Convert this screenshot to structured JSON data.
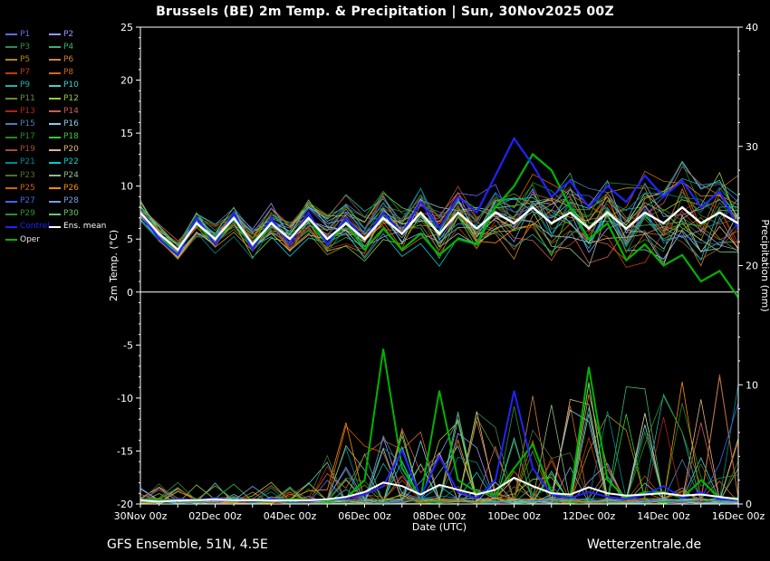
{
  "title": "Brussels  (BE)  2m Temp. & Precipitation | Sun, 30Nov2025 00Z",
  "footer": {
    "left": "GFS Ensemble, 51N, 4.5E",
    "right": "Wetterzentrale.de"
  },
  "legend": {
    "members": [
      {
        "label": "P1",
        "color": "#6666ee"
      },
      {
        "label": "P2",
        "color": "#9999ff"
      },
      {
        "label": "P3",
        "color": "#2e8b57"
      },
      {
        "label": "P4",
        "color": "#3cb371"
      },
      {
        "label": "P5",
        "color": "#b8860b"
      },
      {
        "label": "P6",
        "color": "#cd853f"
      },
      {
        "label": "P7",
        "color": "#c04000"
      },
      {
        "label": "P8",
        "color": "#d2691e"
      },
      {
        "label": "P9",
        "color": "#20b2aa"
      },
      {
        "label": "P10",
        "color": "#48d1cc"
      },
      {
        "label": "P11",
        "color": "#6b8e23"
      },
      {
        "label": "P12",
        "color": "#9acd32"
      },
      {
        "label": "P13",
        "color": "#b22222"
      },
      {
        "label": "P14",
        "color": "#cd5c5c"
      },
      {
        "label": "P15",
        "color": "#4682b4"
      },
      {
        "label": "P16",
        "color": "#87ceeb"
      },
      {
        "label": "P17",
        "color": "#228b22"
      },
      {
        "label": "P18",
        "color": "#32cd32"
      },
      {
        "label": "P19",
        "color": "#a0522d"
      },
      {
        "label": "P20",
        "color": "#deb887"
      },
      {
        "label": "P21",
        "color": "#008b8b"
      },
      {
        "label": "P22",
        "color": "#00ced1"
      },
      {
        "label": "P23",
        "color": "#556b2f"
      },
      {
        "label": "P24",
        "color": "#8fbc8f"
      },
      {
        "label": "P25",
        "color": "#cc6600"
      },
      {
        "label": "P26",
        "color": "#ff8c00"
      },
      {
        "label": "P27",
        "color": "#4169e1"
      },
      {
        "label": "P28",
        "color": "#7b9fe0"
      },
      {
        "label": "P29",
        "color": "#2f8f2f"
      },
      {
        "label": "P30",
        "color": "#66cc66"
      }
    ],
    "control": {
      "label": "Control",
      "color": "#2222ff"
    },
    "ens_mean": {
      "label": "Ens. mean",
      "color": "#ffffff"
    },
    "oper": {
      "label": "Oper",
      "color": "#00b400",
      "label_color": "#e8e8e8"
    }
  },
  "chart_data": {
    "type": "line",
    "title": "Brussels  (BE)  2m Temp. & Precipitation | Sun, 30Nov2025 00Z",
    "xlabel": "Date (UTC)",
    "ylabel_left": "2m Temp. (°C)",
    "ylabel_right": "Precipitation (mm)",
    "ylim_left": [
      -20,
      25
    ],
    "ylim_right": [
      0,
      40
    ],
    "x_hours_step": 12,
    "x_hours_max": 384,
    "x_tick_labels": [
      "30Nov 00z",
      "02Dec 00z",
      "04Dec 00z",
      "06Dec 00z",
      "08Dec 00z",
      "10Dec 00z",
      "12Dec 00z",
      "14Dec 00z",
      "16Dec 00z"
    ],
    "y_ticks_left": [
      25,
      20,
      15,
      10,
      5,
      0,
      -5,
      -10,
      -15,
      -20
    ],
    "y_ticks_right": [
      40,
      30,
      20,
      10,
      0
    ],
    "zero_line": 0,
    "series": {
      "control": {
        "name": "Control",
        "color": "#2222ff",
        "width": 2.2,
        "temp": [
          7.5,
          5.0,
          3.5,
          7.0,
          4.5,
          7.5,
          4.0,
          7.0,
          4.5,
          7.5,
          4.5,
          7.0,
          5.0,
          7.5,
          5.5,
          8.5,
          6.0,
          9.0,
          7.5,
          11.0,
          14.5,
          12.0,
          9.0,
          10.5,
          8.0,
          10.0,
          8.5,
          11.0,
          9.0,
          10.5,
          8.0,
          9.5,
          6.0
        ],
        "precip": [
          0.3,
          0.2,
          0.4,
          0.3,
          0.5,
          0.3,
          0.2,
          0.4,
          0.3,
          0.2,
          0.4,
          0.5,
          0.8,
          1.5,
          4.5,
          0.6,
          4.0,
          1.0,
          0.5,
          2.0,
          9.5,
          3.0,
          0.8,
          0.5,
          1.0,
          0.6,
          0.4,
          0.8,
          1.5,
          0.5,
          1.0,
          0.4,
          0.3
        ]
      },
      "ens_mean": {
        "name": "Ens. mean",
        "color": "#ffffff",
        "width": 2.4,
        "temp": [
          7.5,
          5.5,
          4.0,
          6.5,
          5.0,
          7.0,
          4.5,
          6.5,
          5.0,
          7.0,
          5.0,
          6.5,
          5.0,
          7.0,
          5.5,
          7.5,
          5.5,
          7.5,
          6.0,
          7.5,
          6.5,
          8.0,
          6.5,
          7.5,
          6.0,
          7.5,
          6.0,
          7.5,
          6.5,
          8.0,
          6.5,
          7.5,
          6.5
        ],
        "precip": [
          0.3,
          0.2,
          0.3,
          0.3,
          0.4,
          0.3,
          0.3,
          0.3,
          0.3,
          0.3,
          0.4,
          0.6,
          1.0,
          1.8,
          1.5,
          0.8,
          1.6,
          1.2,
          0.8,
          1.2,
          2.2,
          1.5,
          0.9,
          0.8,
          1.4,
          0.9,
          0.7,
          0.8,
          0.9,
          0.7,
          0.8,
          0.6,
          0.4
        ]
      },
      "oper": {
        "name": "Oper",
        "color": "#00b400",
        "width": 2.2,
        "temp": [
          7.5,
          5.0,
          4.0,
          6.5,
          4.5,
          7.0,
          4.0,
          6.5,
          5.0,
          7.0,
          4.5,
          6.5,
          4.0,
          6.0,
          4.0,
          5.5,
          3.5,
          5.0,
          4.5,
          8.0,
          10.0,
          13.0,
          11.5,
          8.0,
          5.0,
          6.5,
          3.0,
          4.5,
          2.5,
          3.5,
          1.0,
          2.0,
          -0.5
        ],
        "precip": [
          0.2,
          0.3,
          0.4,
          0.2,
          0.5,
          0.3,
          0.2,
          0.3,
          0.4,
          0.3,
          0.3,
          0.5,
          2.0,
          13.0,
          3.0,
          0.5,
          9.5,
          2.0,
          1.0,
          0.8,
          3.0,
          5.0,
          1.0,
          0.5,
          11.5,
          2.0,
          0.5,
          1.0,
          1.0,
          0.5,
          2.0,
          0.5,
          0.5
        ]
      }
    },
    "ensemble": {
      "count": 30,
      "line_width": 0.8,
      "temp_spread_start": 1.2,
      "temp_spread_end": 6.0,
      "precip_max": 13,
      "seeds": [
        3,
        17,
        29,
        41,
        53,
        67,
        79,
        97,
        113,
        131,
        149,
        167,
        181,
        199,
        223,
        241,
        263,
        281,
        307,
        331,
        353,
        379,
        401,
        421,
        443,
        463,
        487,
        509,
        541,
        577
      ]
    }
  }
}
